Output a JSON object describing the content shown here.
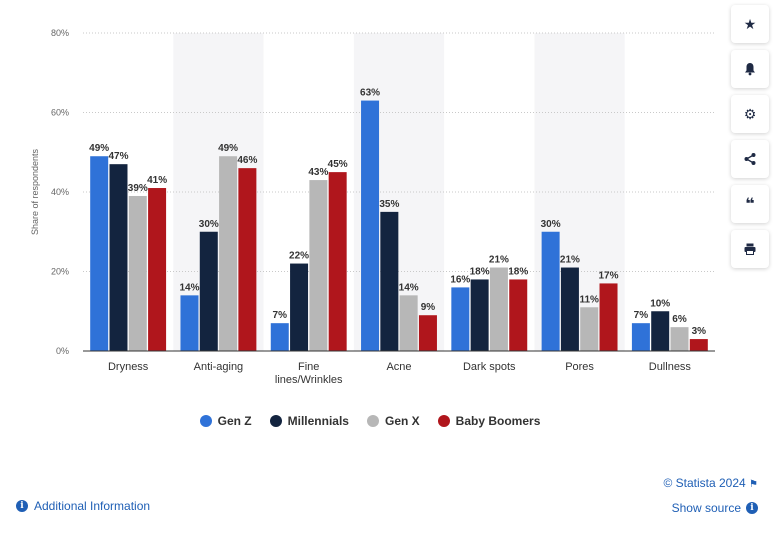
{
  "chart_data": {
    "type": "bar",
    "ylabel": "Share of respondents",
    "ylim": [
      0,
      80
    ],
    "yticks": [
      "0%",
      "20%",
      "40%",
      "60%",
      "80%"
    ],
    "ytick_values": [
      0,
      20,
      40,
      60,
      80
    ],
    "categories": [
      "Dryness",
      "Anti-aging",
      "Fine lines/Wrinkles",
      "Acne",
      "Dark spots",
      "Pores",
      "Dullness"
    ],
    "category_lines": [
      [
        "Dryness"
      ],
      [
        "Anti-aging"
      ],
      [
        "Fine",
        "lines/Wrinkles"
      ],
      [
        "Acne"
      ],
      [
        "Dark spots"
      ],
      [
        "Pores"
      ],
      [
        "Dullness"
      ]
    ],
    "series": [
      {
        "name": "Gen Z",
        "color": "#2f72d8",
        "values": [
          49,
          14,
          7,
          63,
          16,
          30,
          7
        ]
      },
      {
        "name": "Millennials",
        "color": "#13243f",
        "values": [
          47,
          30,
          22,
          35,
          18,
          21,
          10
        ]
      },
      {
        "name": "Gen X",
        "color": "#b7b7b7",
        "values": [
          39,
          49,
          43,
          14,
          21,
          11,
          6
        ]
      },
      {
        "name": "Baby Boomers",
        "color": "#b0161c",
        "values": [
          41,
          46,
          45,
          9,
          18,
          17,
          3
        ]
      }
    ],
    "value_suffix": "%",
    "grid": true,
    "legend_position": "bottom"
  },
  "toolbar": {
    "icons": [
      "star-icon",
      "bell-icon",
      "gear-icon",
      "share-icon",
      "quote-icon",
      "print-icon"
    ],
    "glyphs": [
      "★",
      "🔔",
      "⚙",
      "⋖",
      "❝",
      "⎙"
    ]
  },
  "footer": {
    "credit": "© Statista 2024",
    "show_source": "Show source",
    "additional_info": "Additional Information"
  }
}
